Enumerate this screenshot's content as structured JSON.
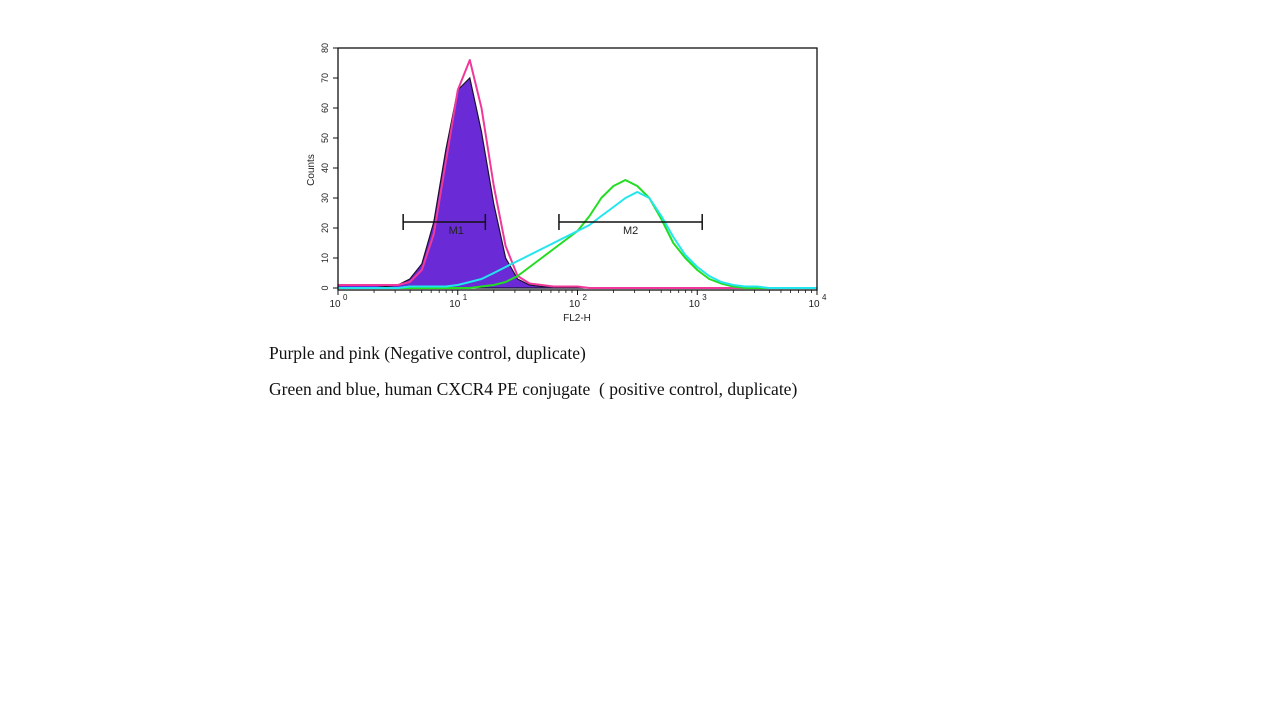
{
  "chart_data": {
    "type": "line",
    "xlabel": "FL2-H",
    "ylabel": "Counts",
    "xscale": "log",
    "xlim": [
      1,
      10000
    ],
    "ylim": [
      0,
      80
    ],
    "grid": false,
    "x_ticks": [
      {
        "base": "10",
        "exp": "0"
      },
      {
        "base": "10",
        "exp": "1"
      },
      {
        "base": "10",
        "exp": "2"
      },
      {
        "base": "10",
        "exp": "3"
      },
      {
        "base": "10",
        "exp": "4"
      }
    ],
    "y_ticks": [
      "0",
      "10",
      "20",
      "30",
      "40",
      "50",
      "60",
      "70",
      "80"
    ],
    "x": [
      1,
      1.26,
      1.58,
      2.0,
      2.51,
      3.16,
      3.98,
      5.01,
      6.31,
      7.94,
      10,
      12.6,
      15.8,
      20,
      25.1,
      31.6,
      39.8,
      50.1,
      63.1,
      79.4,
      100,
      126,
      158,
      200,
      251,
      316,
      398,
      501,
      631,
      794,
      1000,
      1259,
      1585,
      1995,
      2512,
      3162,
      3981,
      5012,
      6310,
      7943,
      10000
    ],
    "series": [
      {
        "color": "#6a2bd6",
        "style": "filled",
        "values": [
          1,
          1,
          1,
          1,
          0.5,
          1,
          3,
          8,
          22,
          46,
          66,
          70,
          52,
          28,
          10,
          3,
          1,
          0.5,
          0.5,
          0,
          0,
          0,
          0,
          0,
          0,
          0,
          0,
          0,
          0,
          0,
          0,
          0,
          0,
          0,
          0,
          0,
          0,
          0,
          0,
          0,
          0
        ]
      },
      {
        "color": "#f0389a",
        "style": "line",
        "values": [
          1,
          1,
          1,
          1,
          1,
          1,
          2,
          6,
          18,
          42,
          66,
          76,
          60,
          34,
          14,
          4,
          1.5,
          1,
          0.5,
          0.5,
          0.5,
          0,
          0,
          0,
          0,
          0,
          0,
          0,
          0,
          0,
          0,
          0,
          0,
          0,
          0,
          0,
          0,
          0,
          0,
          0,
          0
        ]
      },
      {
        "color": "#22dd22",
        "style": "line",
        "values": [
          0,
          0,
          0,
          0,
          0,
          0,
          0,
          0,
          0,
          0,
          0,
          0,
          0.5,
          1,
          2,
          4,
          7,
          10,
          13,
          16,
          19,
          24,
          30,
          34,
          36,
          34,
          30,
          23,
          15,
          10,
          6,
          3,
          1.5,
          0.5,
          0,
          0,
          0,
          0,
          0,
          0,
          0
        ]
      },
      {
        "color": "#22e6ee",
        "style": "line",
        "values": [
          0,
          0,
          0,
          0,
          0,
          0,
          0.5,
          0.5,
          0.5,
          0.5,
          1,
          2,
          3,
          5,
          7,
          9,
          11,
          13,
          15,
          17,
          19,
          21,
          24,
          27,
          30,
          32,
          30,
          24,
          17,
          11,
          7,
          4,
          2,
          1,
          0.5,
          0.5,
          0,
          0,
          0,
          0,
          0
        ]
      }
    ],
    "markers": [
      {
        "label": "M1",
        "from": 3.5,
        "to": 17,
        "y": 22
      },
      {
        "label": "M2",
        "from": 70,
        "to": 1100,
        "y": 22
      }
    ]
  },
  "captions": [
    "Purple and pink (Negative control, duplicate)",
    "Green and blue, human CXCR4 PE conjugate  ( positive control, duplicate)"
  ]
}
